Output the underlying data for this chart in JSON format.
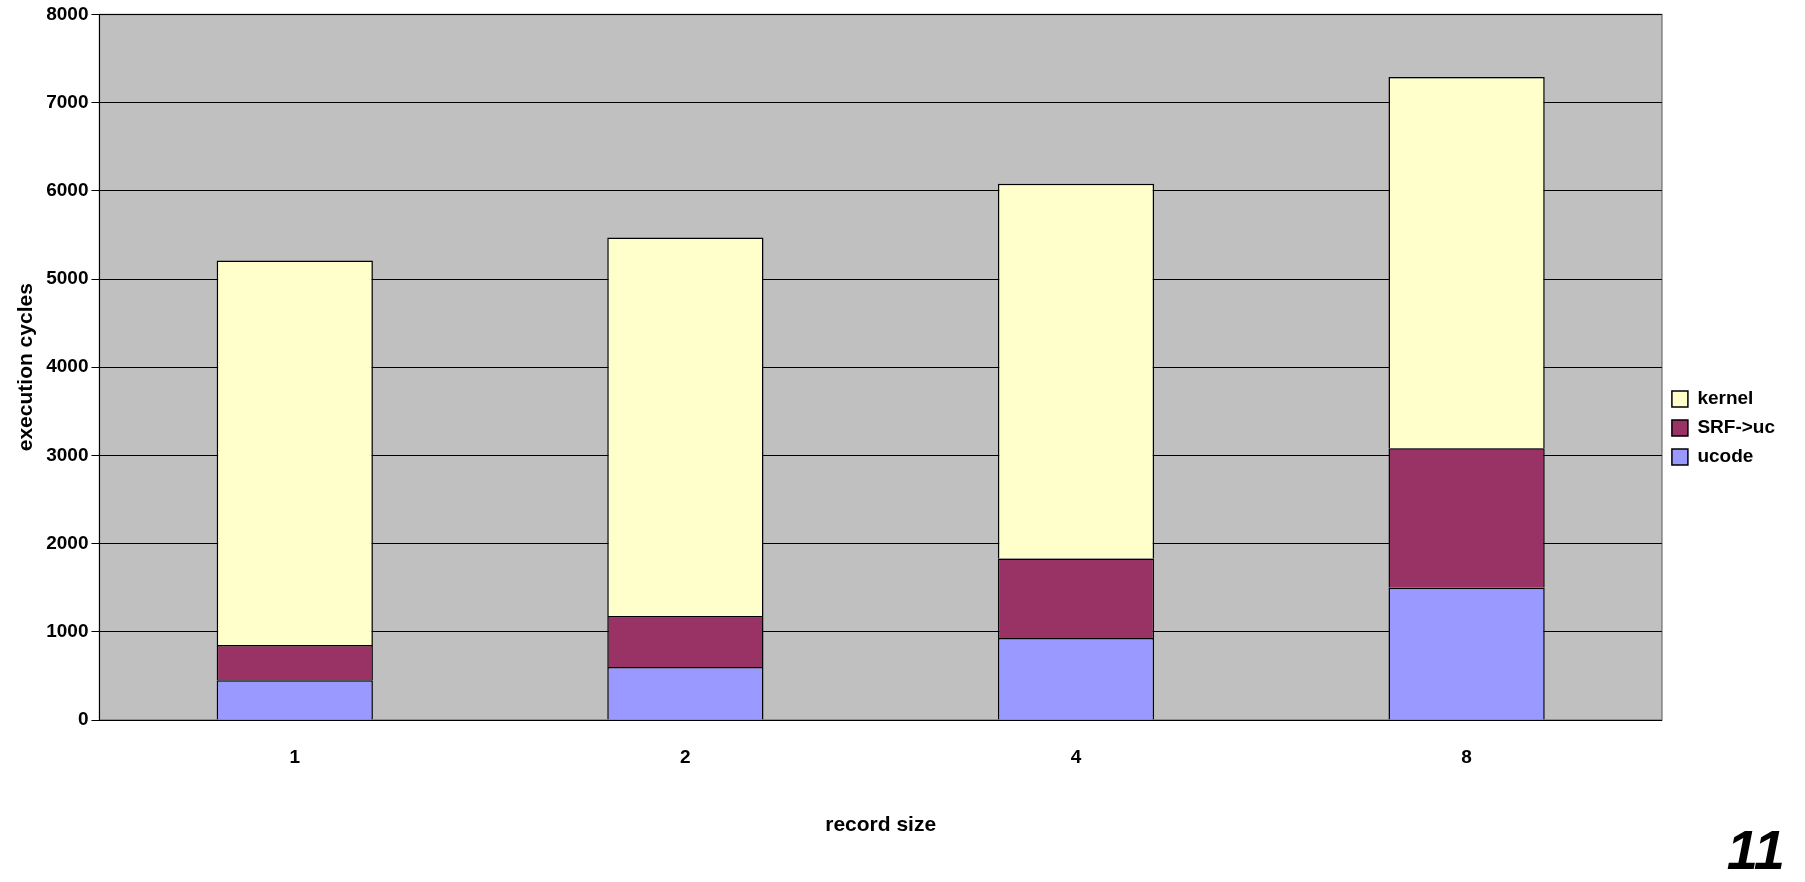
{
  "chart_data": {
    "type": "bar",
    "stacked": true,
    "xlabel": "record size",
    "ylabel": "execution cycles",
    "categories": [
      "1",
      "2",
      "4",
      "8"
    ],
    "series": [
      {
        "name": "ucode",
        "color": "#9999ff",
        "values": [
          450,
          600,
          930,
          1500
        ]
      },
      {
        "name": "SRF->uc",
        "color": "#993366",
        "values": [
          400,
          580,
          900,
          1580
        ]
      },
      {
        "name": "kernel",
        "color": "#ffffcc",
        "values": [
          4360,
          4290,
          4250,
          4210
        ]
      }
    ],
    "ylim": [
      0,
      8000
    ],
    "yticks": [
      0,
      1000,
      2000,
      3000,
      4000,
      5000,
      6000,
      7000,
      8000
    ],
    "grid": "y",
    "legend": "right",
    "annotations": [
      "11"
    ]
  }
}
